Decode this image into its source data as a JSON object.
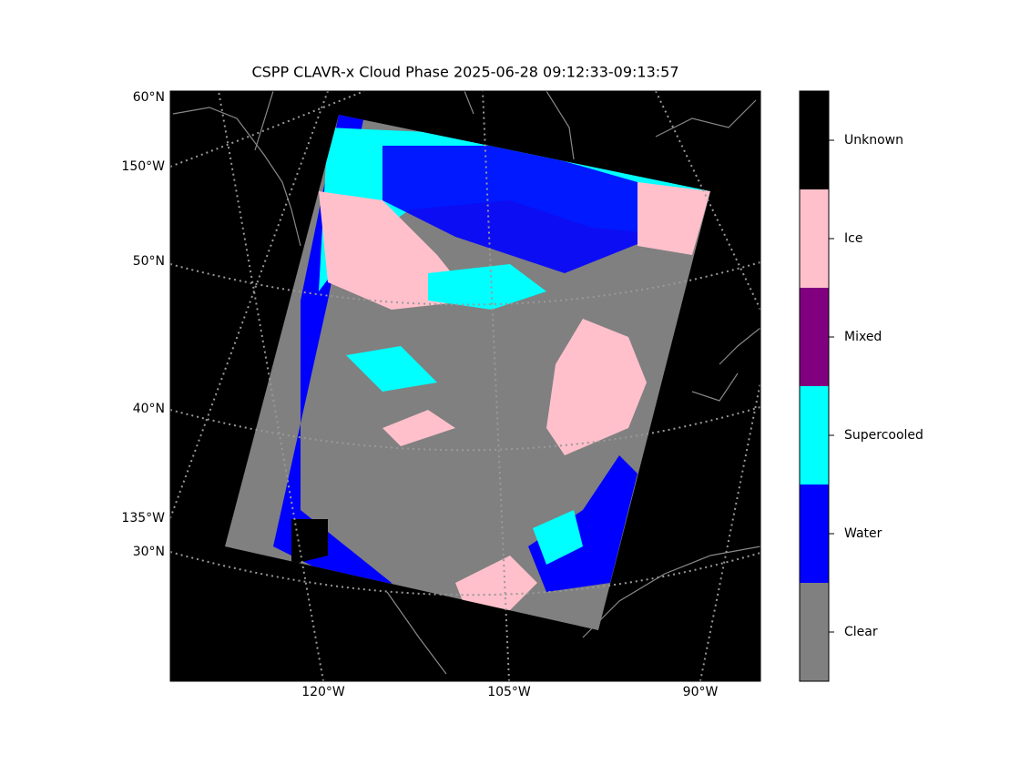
{
  "title": "CSPP CLAVR-x Cloud Phase 2025-06-28 09:12:33-09:13:57",
  "left_labels": [
    "60°N",
    "150°W",
    "50°N",
    "40°N",
    "135°W",
    "30°N"
  ],
  "bottom_labels": [
    "120°W",
    "105°W",
    "90°W"
  ],
  "legend": [
    {
      "label": "Unknown",
      "color": "#000000"
    },
    {
      "label": "Ice",
      "color": "#ffc0cb"
    },
    {
      "label": "Mixed",
      "color": "#800080"
    },
    {
      "label": "Supercooled",
      "color": "#00ffff"
    },
    {
      "label": "Water",
      "color": "#0000ff"
    },
    {
      "label": "Clear",
      "color": "#808080"
    }
  ]
}
